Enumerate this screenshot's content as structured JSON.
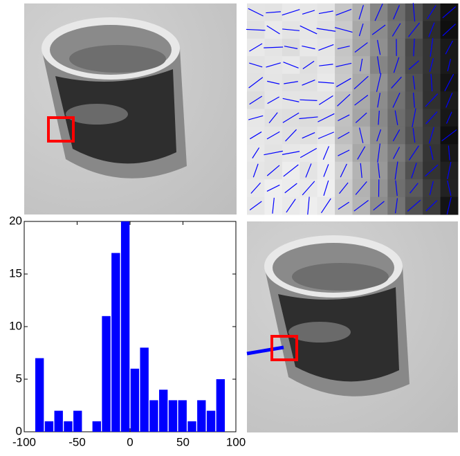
{
  "chart_data": {
    "type": "histogram",
    "bins": [
      -90,
      -81,
      -72,
      -63,
      -54,
      -45,
      -36,
      -27,
      -18,
      -9,
      0,
      9,
      18,
      27,
      36,
      45,
      54,
      63,
      72,
      81,
      90
    ],
    "values": [
      7,
      1,
      2,
      1,
      2,
      0,
      1,
      11,
      17,
      20,
      6,
      8,
      3,
      4,
      3,
      3,
      1,
      3,
      2,
      5
    ],
    "color": "#0000ff",
    "xlim": [
      -100,
      100
    ],
    "xticks": [
      -100,
      -50,
      0,
      50,
      100
    ],
    "ylim": [
      0,
      20
    ],
    "yticks": [
      0,
      5,
      10,
      15,
      20
    ]
  }
}
